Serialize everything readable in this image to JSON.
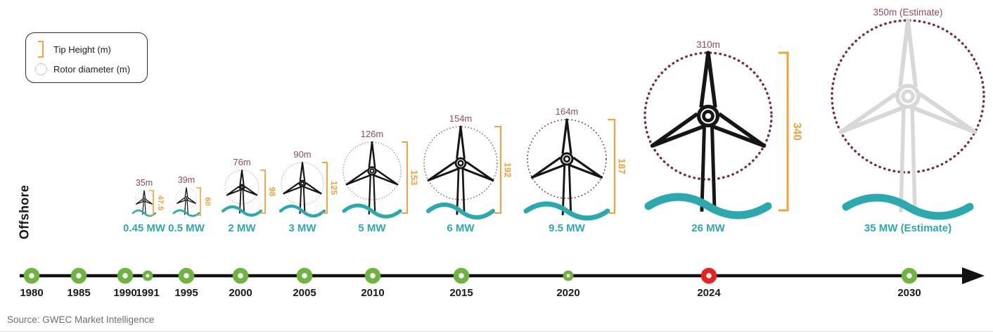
{
  "legend": {
    "items": [
      {
        "icon": "tip-height-bracket-icon",
        "label": "Tip Height (m)"
      },
      {
        "icon": "rotor-diameter-circle-icon",
        "label": "Rotor diameter (m)"
      }
    ]
  },
  "side_label": "Offshore",
  "source": "Source: GWEC Market Intelligence",
  "colors": {
    "orange": "#EFA33C",
    "plum": "#8E4A68",
    "maroon_dots": "#7A2B48",
    "light_dots": "#C8C3C0",
    "mid_dots": "#B795A4",
    "teal": "#2BA9AE",
    "green": "#6FB43F",
    "red": "#E5231F",
    "turbine_black": "#161616",
    "turbine_gray": "#D8D8D8",
    "timeline_black": "#111111",
    "year_text": "#1a1a1a",
    "source_gray": "#6f6f6f"
  },
  "turbines": [
    {
      "mw_label": "0.45 MW",
      "rotor_diameter_label": "35m",
      "rotor_diameter_m": 35,
      "tip_height_label": "47.5",
      "tip_height_m": 47.5,
      "estimate": false
    },
    {
      "mw_label": "0.5 MW",
      "rotor_diameter_label": "39m",
      "rotor_diameter_m": 39,
      "tip_height_label": "60",
      "tip_height_m": 60,
      "estimate": false
    },
    {
      "mw_label": "2 MW",
      "rotor_diameter_label": "76m",
      "rotor_diameter_m": 76,
      "tip_height_label": "98",
      "tip_height_m": 98,
      "estimate": false
    },
    {
      "mw_label": "3 MW",
      "rotor_diameter_label": "90m",
      "rotor_diameter_m": 90,
      "tip_height_label": "125",
      "tip_height_m": 125,
      "estimate": false
    },
    {
      "mw_label": "5 MW",
      "rotor_diameter_label": "126m",
      "rotor_diameter_m": 126,
      "tip_height_label": "153",
      "tip_height_m": 153,
      "estimate": false
    },
    {
      "mw_label": "6 MW",
      "rotor_diameter_label": "154m",
      "rotor_diameter_m": 154,
      "tip_height_label": "192",
      "tip_height_m": 192,
      "estimate": false
    },
    {
      "mw_label": "9.5 MW",
      "rotor_diameter_label": "164m",
      "rotor_diameter_m": 164,
      "tip_height_label": "187",
      "tip_height_m": 187,
      "estimate": false
    },
    {
      "mw_label": "26 MW",
      "rotor_diameter_label": "310m",
      "rotor_diameter_m": 310,
      "tip_height_label": "340",
      "tip_height_m": 340,
      "estimate": false
    },
    {
      "mw_label": "35 MW (Estimate)",
      "rotor_diameter_label": "350m (Estimate)",
      "rotor_diameter_m": 350,
      "tip_height_label": null,
      "tip_height_m": null,
      "estimate": true
    }
  ],
  "timeline": {
    "years": [
      {
        "label": "1980",
        "marker": "green",
        "size": "large"
      },
      {
        "label": "1985",
        "marker": "green",
        "size": "large"
      },
      {
        "label": "1990",
        "marker": "green",
        "size": "large"
      },
      {
        "label": "1991",
        "marker": "green",
        "size": "small"
      },
      {
        "label": "1995",
        "marker": "green",
        "size": "large"
      },
      {
        "label": "2000",
        "marker": "green",
        "size": "large"
      },
      {
        "label": "2005",
        "marker": "green",
        "size": "large"
      },
      {
        "label": "2010",
        "marker": "green",
        "size": "large"
      },
      {
        "label": "2015",
        "marker": "green",
        "size": "large"
      },
      {
        "label": "2020",
        "marker": "green",
        "size": "small"
      },
      {
        "label": "2024",
        "marker": "red",
        "size": "large"
      },
      {
        "label": "2030",
        "marker": "green",
        "size": "large"
      }
    ]
  }
}
